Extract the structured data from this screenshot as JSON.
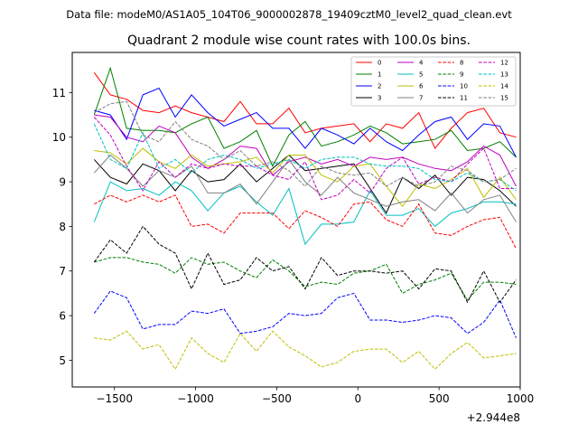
{
  "header_text": "Data file: modeM0/AS1A05_104T06_9000002878_19409cztM0_level2_quad_clean.evt",
  "chart_data": {
    "type": "line",
    "title": "Quadrant 2 module wise count rates with 100.0s bins.",
    "xlabel": "",
    "ylabel": "",
    "x_offset_label": "+2.944e8",
    "xlim": [
      -1760,
      1000
    ],
    "ylim": [
      4.4,
      11.9
    ],
    "xticks": [
      -1500,
      -1000,
      -500,
      0,
      500,
      1000
    ],
    "xtick_labels": [
      "−1500",
      "−1000",
      "−500",
      "0",
      "500",
      "1000"
    ],
    "yticks": [
      5,
      6,
      7,
      8,
      9,
      10,
      11
    ],
    "ytick_labels": [
      "5",
      "6",
      "7",
      "8",
      "9",
      "10",
      "11"
    ],
    "grid": false,
    "legend_position": "top-right",
    "legend_columns": 4,
    "x": [
      -1625,
      -1525,
      -1425,
      -1325,
      -1225,
      -1125,
      -1025,
      -925,
      -825,
      -725,
      -625,
      -525,
      -425,
      -325,
      -225,
      -125,
      -25,
      75,
      175,
      275,
      375,
      475,
      575,
      675,
      775,
      875,
      975
    ],
    "series": [
      {
        "name": "0",
        "color": "#ff0000",
        "dash": "solid",
        "values": [
          11.45,
          10.95,
          10.85,
          10.6,
          10.55,
          10.7,
          10.55,
          10.45,
          10.35,
          10.8,
          10.3,
          10.3,
          10.65,
          10.1,
          10.2,
          10.25,
          10.3,
          9.9,
          10.3,
          10.2,
          10.55,
          9.75,
          10.2,
          10.55,
          10.65,
          10.1,
          10.0
        ]
      },
      {
        "name": "1",
        "color": "#008000",
        "dash": "solid",
        "values": [
          10.5,
          11.55,
          10.2,
          10.15,
          10.15,
          10.1,
          10.3,
          10.45,
          9.75,
          9.9,
          10.15,
          9.35,
          10.05,
          10.35,
          9.8,
          9.9,
          10.05,
          10.25,
          10.1,
          9.85,
          9.9,
          9.95,
          10.15,
          9.7,
          9.75,
          9.9,
          9.55
        ]
      },
      {
        "name": "2",
        "color": "#0000ff",
        "dash": "solid",
        "values": [
          10.6,
          10.5,
          9.95,
          10.95,
          11.1,
          10.45,
          10.95,
          10.55,
          10.25,
          10.4,
          10.55,
          10.2,
          10.2,
          9.75,
          10.2,
          10.05,
          9.85,
          10.2,
          9.9,
          9.7,
          10.05,
          10.35,
          10.45,
          9.95,
          10.3,
          10.25,
          9.55
        ]
      },
      {
        "name": "3",
        "color": "#000000",
        "dash": "solid",
        "values": [
          9.5,
          9.1,
          8.95,
          9.4,
          9.25,
          8.8,
          9.25,
          9.0,
          9.05,
          9.4,
          9.0,
          9.3,
          9.6,
          9.25,
          9.3,
          9.35,
          9.4,
          8.85,
          8.3,
          9.1,
          8.85,
          9.15,
          8.7,
          9.1,
          9.05,
          8.8,
          8.45
        ]
      },
      {
        "name": "4",
        "color": "#bf00bf",
        "dash": "solid",
        "values": [
          10.5,
          10.45,
          10.0,
          9.9,
          10.25,
          10.1,
          9.55,
          9.3,
          9.5,
          9.8,
          9.75,
          9.15,
          9.45,
          9.55,
          9.4,
          9.5,
          9.35,
          9.55,
          9.5,
          9.55,
          9.4,
          9.3,
          9.25,
          9.45,
          9.8,
          9.6,
          8.9
        ]
      },
      {
        "name": "5",
        "color": "#00bfbf",
        "dash": "solid",
        "values": [
          8.1,
          9.0,
          8.8,
          8.85,
          8.7,
          9.0,
          8.8,
          8.35,
          8.75,
          8.9,
          8.55,
          8.25,
          8.85,
          7.6,
          8.05,
          8.05,
          8.1,
          8.8,
          8.25,
          8.25,
          8.4,
          8.0,
          8.3,
          8.4,
          8.55,
          8.55,
          8.5
        ]
      },
      {
        "name": "6",
        "color": "#bfbf00",
        "dash": "solid",
        "values": [
          9.7,
          9.65,
          9.4,
          9.75,
          9.45,
          9.3,
          9.6,
          9.35,
          9.4,
          9.45,
          9.55,
          9.2,
          9.6,
          9.6,
          9.15,
          9.0,
          9.35,
          9.4,
          8.9,
          8.45,
          8.95,
          8.85,
          9.05,
          9.3,
          8.65,
          9.1,
          8.6
        ]
      },
      {
        "name": "7",
        "color": "#808080",
        "dash": "solid",
        "values": [
          9.2,
          9.6,
          9.3,
          8.9,
          9.25,
          9.1,
          9.35,
          8.75,
          8.75,
          8.95,
          8.5,
          9.0,
          9.5,
          9.0,
          8.7,
          9.1,
          8.75,
          8.6,
          8.45,
          8.55,
          8.6,
          8.35,
          8.75,
          8.3,
          8.6,
          8.7,
          8.1
        ]
      },
      {
        "name": "8",
        "color": "#ff0000",
        "dash": "dashed",
        "values": [
          8.5,
          8.7,
          8.55,
          8.7,
          8.55,
          8.7,
          8.0,
          8.05,
          7.85,
          8.3,
          8.3,
          8.3,
          7.95,
          8.35,
          8.2,
          8.0,
          8.5,
          8.55,
          8.15,
          8.0,
          8.5,
          7.85,
          7.8,
          8.0,
          8.15,
          8.2,
          7.5
        ]
      },
      {
        "name": "9",
        "color": "#008000",
        "dash": "dashed",
        "values": [
          7.2,
          7.3,
          7.3,
          7.2,
          7.15,
          6.95,
          7.3,
          7.15,
          7.2,
          7.0,
          6.85,
          7.25,
          7.0,
          6.65,
          6.75,
          6.7,
          6.95,
          7.0,
          7.15,
          6.5,
          6.7,
          6.8,
          6.95,
          6.35,
          6.75,
          6.75,
          6.7
        ]
      },
      {
        "name": "10",
        "color": "#0000ff",
        "dash": "dashed",
        "values": [
          6.05,
          6.55,
          6.4,
          5.7,
          5.8,
          5.8,
          6.1,
          6.05,
          6.15,
          5.6,
          5.65,
          5.75,
          6.05,
          6.0,
          6.05,
          6.4,
          6.5,
          5.9,
          5.9,
          5.85,
          5.9,
          6.0,
          5.95,
          5.6,
          5.85,
          6.35,
          5.5
        ]
      },
      {
        "name": "11",
        "color": "#000000",
        "dash": "dashed",
        "values": [
          7.2,
          7.7,
          7.4,
          8.0,
          7.6,
          7.4,
          6.6,
          7.4,
          6.7,
          6.8,
          7.3,
          7.0,
          7.1,
          6.6,
          7.3,
          6.9,
          7.0,
          7.0,
          6.95,
          7.0,
          6.6,
          7.05,
          7.0,
          6.3,
          7.0,
          6.3,
          6.8
        ]
      },
      {
        "name": "12",
        "color": "#bf00bf",
        "dash": "dashed",
        "values": [
          10.45,
          10.05,
          9.35,
          8.8,
          9.45,
          9.1,
          9.4,
          9.3,
          9.4,
          9.35,
          9.35,
          9.15,
          9.05,
          9.45,
          8.6,
          8.7,
          9.05,
          8.75,
          9.3,
          9.55,
          8.95,
          9.1,
          9.0,
          9.4,
          9.75,
          8.85,
          8.85
        ]
      },
      {
        "name": "13",
        "color": "#00bfbf",
        "dash": "dashed",
        "values": [
          10.3,
          9.5,
          9.3,
          10.1,
          9.3,
          9.5,
          9.2,
          9.5,
          9.6,
          9.5,
          9.3,
          9.4,
          9.5,
          9.3,
          9.5,
          9.55,
          9.55,
          9.4,
          9.35,
          9.35,
          9.3,
          9.05,
          9.0,
          9.2,
          9.0,
          9.05,
          8.8
        ]
      },
      {
        "name": "14",
        "color": "#bfbf00",
        "dash": "dashed",
        "values": [
          5.5,
          5.45,
          5.65,
          5.25,
          5.35,
          4.8,
          5.5,
          5.15,
          4.95,
          5.6,
          5.2,
          5.65,
          5.3,
          5.1,
          4.85,
          4.95,
          5.2,
          5.25,
          5.25,
          4.95,
          5.2,
          4.8,
          5.15,
          5.4,
          5.05,
          5.1,
          5.15
        ]
      },
      {
        "name": "15",
        "color": "#808080",
        "dash": "dashed",
        "values": [
          10.55,
          10.75,
          10.8,
          10.05,
          9.9,
          10.35,
          9.95,
          9.8,
          9.5,
          9.7,
          9.35,
          9.45,
          9.25,
          8.9,
          9.35,
          9.2,
          9.15,
          9.2,
          8.9,
          9.1,
          8.9,
          9.0,
          9.35,
          9.25,
          9.0,
          9.05,
          9.3
        ]
      }
    ]
  }
}
